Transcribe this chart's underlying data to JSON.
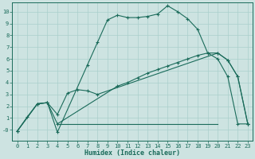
{
  "title": "",
  "xlabel": "Humidex (Indice chaleur)",
  "bg_color": "#cde3e1",
  "line_color": "#1a6b5a",
  "grid_color": "#aacfcc",
  "xlim": [
    -0.5,
    23.5
  ],
  "ylim": [
    -0.9,
    10.8
  ],
  "xticks": [
    0,
    1,
    2,
    3,
    4,
    5,
    6,
    7,
    8,
    9,
    10,
    11,
    12,
    13,
    14,
    15,
    16,
    17,
    18,
    19,
    20,
    21,
    22,
    23
  ],
  "yticks": [
    0,
    1,
    2,
    3,
    4,
    5,
    6,
    7,
    8,
    9,
    10
  ],
  "ytick_labels": [
    "-0",
    "1",
    "2",
    "3",
    "4",
    "5",
    "6",
    "7",
    "8",
    "9",
    "10"
  ],
  "line1_x": [
    0,
    1,
    2,
    3,
    4,
    7,
    8,
    9,
    10,
    11,
    12,
    13,
    14,
    15,
    16,
    17,
    18,
    19,
    20,
    21,
    22,
    23
  ],
  "line1_y": [
    -0.1,
    1.1,
    2.2,
    2.3,
    -0.2,
    5.5,
    7.4,
    9.3,
    9.7,
    9.5,
    9.5,
    9.6,
    9.8,
    10.5,
    10.0,
    9.4,
    8.5,
    6.5,
    6.0,
    4.5,
    0.5,
    0.5
  ],
  "line2_x": [
    0,
    2,
    3,
    4,
    5,
    6,
    7,
    8,
    20,
    21,
    22,
    23
  ],
  "line2_y": [
    -0.1,
    2.2,
    2.3,
    1.3,
    3.1,
    3.4,
    3.3,
    3.0,
    6.5,
    5.9,
    4.5,
    0.5
  ],
  "line3_x": [
    0,
    2,
    3,
    4,
    10,
    11,
    12,
    13,
    14,
    15,
    16,
    17,
    18,
    19,
    20,
    21,
    22,
    23
  ],
  "line3_y": [
    -0.1,
    2.2,
    2.3,
    0.5,
    3.7,
    4.0,
    4.4,
    4.8,
    5.1,
    5.4,
    5.7,
    6.0,
    6.3,
    6.5,
    6.5,
    5.9,
    4.5,
    0.5
  ],
  "line4_x": [
    4,
    20
  ],
  "line4_y": [
    0.5,
    0.5
  ]
}
